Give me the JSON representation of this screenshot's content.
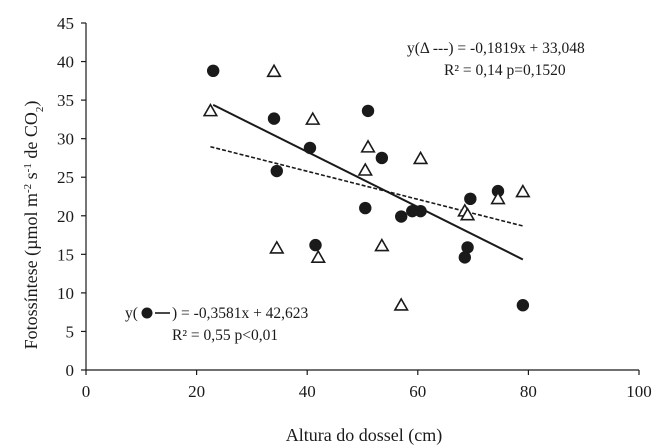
{
  "chart_data": {
    "type": "scatter",
    "title": "",
    "xlabel": "Altura do dossel (cm)",
    "ylabel_parts": [
      "Fotossíntese (µmol m",
      "-2",
      " s",
      "-1",
      " de CO",
      "2",
      ")"
    ],
    "xlim": [
      0,
      100
    ],
    "ylim": [
      0,
      45
    ],
    "x_ticks": [
      0,
      20,
      40,
      60,
      80,
      100
    ],
    "y_ticks": [
      0,
      5,
      10,
      15,
      20,
      25,
      30,
      35,
      40,
      45
    ],
    "grid": false,
    "legend": "none",
    "series": [
      {
        "marker": "filled-circle",
        "color": "#1a1a1a",
        "line_style": "solid",
        "points": [
          [
            23,
            38.8
          ],
          [
            34,
            32.6
          ],
          [
            34.5,
            25.8
          ],
          [
            40.5,
            28.8
          ],
          [
            41.5,
            16.2
          ],
          [
            50.5,
            21.0
          ],
          [
            51,
            33.6
          ],
          [
            53.5,
            27.5
          ],
          [
            57,
            19.9
          ],
          [
            59,
            20.6
          ],
          [
            60.5,
            20.6
          ],
          [
            68.5,
            14.6
          ],
          [
            69,
            15.9
          ],
          [
            69.5,
            22.2
          ],
          [
            74.5,
            23.2
          ],
          [
            79,
            8.4
          ]
        ],
        "trend": {
          "slope": -0.3581,
          "intercept": 42.623,
          "x_range": [
            23,
            79
          ]
        },
        "equation_label": {
          "prefix": "y(",
          "suffix": ") = -0,3581x + 42,623"
        },
        "stats_label": "R² = 0,55 p<0,01"
      },
      {
        "marker": "open-triangle",
        "color": "#1a1a1a",
        "line_style": "dashed",
        "points": [
          [
            22.5,
            33.6
          ],
          [
            34,
            38.7
          ],
          [
            34.5,
            15.8
          ],
          [
            41,
            32.5
          ],
          [
            42,
            14.6
          ],
          [
            50.5,
            25.9
          ],
          [
            51,
            28.9
          ],
          [
            53.5,
            16.1
          ],
          [
            57,
            8.4
          ],
          [
            60.5,
            27.4
          ],
          [
            68.5,
            20.6
          ],
          [
            69,
            20.1
          ],
          [
            74.5,
            22.2
          ],
          [
            79,
            23.1
          ]
        ],
        "trend": {
          "slope": -0.1819,
          "intercept": 33.048,
          "x_range": [
            22.5,
            79
          ]
        },
        "equation_label": {
          "prefix": "y(Δ ---) = -0,1819x + 33,048",
          "suffix": ""
        },
        "stats_label": "R² = 0,14 p=0,1520"
      }
    ]
  }
}
